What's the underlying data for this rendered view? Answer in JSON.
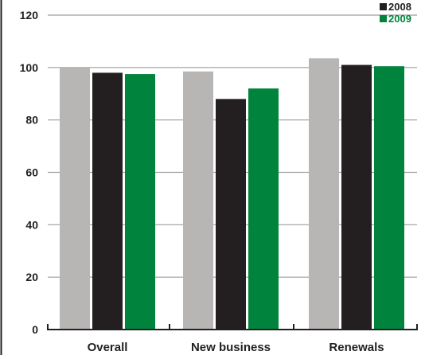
{
  "chart_data": {
    "type": "bar",
    "categories": [
      "Overall",
      "New business",
      "Renewals"
    ],
    "series": [
      {
        "values": [
          100,
          98.5,
          103.5
        ],
        "color": "#b8b5b5"
      },
      {
        "name": "2008",
        "values": [
          98,
          88,
          101
        ],
        "color": "#231f20"
      },
      {
        "name": "2009",
        "values": [
          97.5,
          92,
          100.5
        ],
        "color": "#00843d"
      }
    ],
    "ylim": [
      0,
      120
    ],
    "yticks": [
      0,
      20,
      40,
      60,
      80,
      100,
      120
    ],
    "grid": true,
    "legend_position": "top-right",
    "gridline_color": "#9e9e9e",
    "axis_color": "#231f20"
  }
}
